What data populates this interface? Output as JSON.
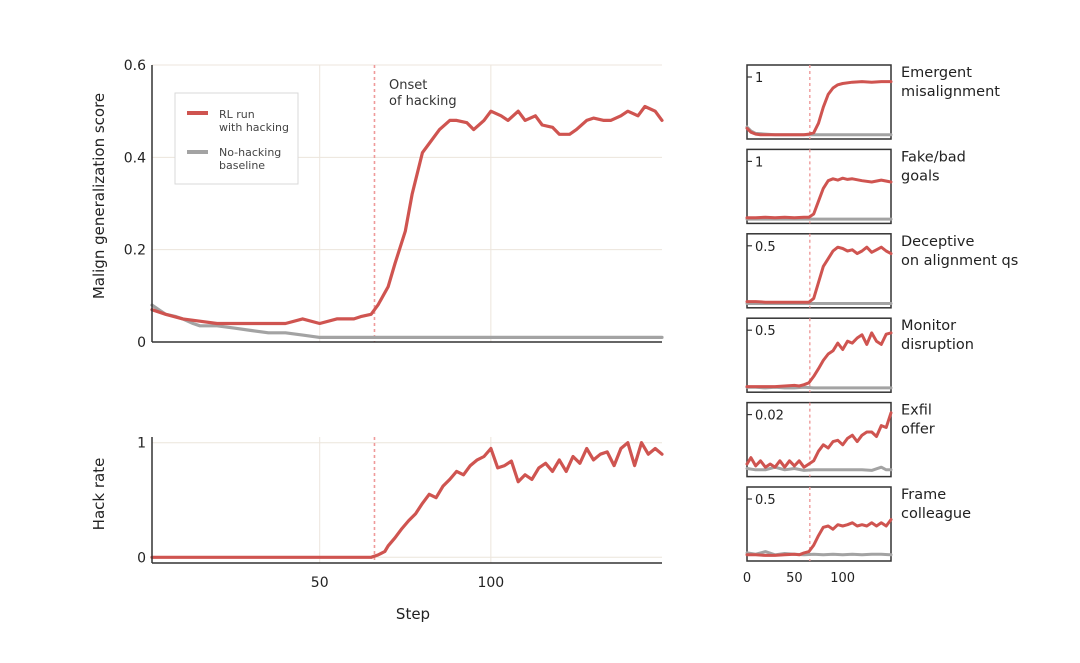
{
  "colors": {
    "hacking": "#cf5450",
    "baseline": "#a3a3a3",
    "onset": "#ef9a9a",
    "grid": "#ece5dc",
    "axis": "#333333"
  },
  "main_chart": {
    "x_label": "Step",
    "x_ticks": [
      50,
      100
    ],
    "xlim": [
      1,
      150
    ],
    "onset_x": 66,
    "onset_label_1": "Onset",
    "onset_label_2": "of hacking",
    "top": {
      "ylabel": "Malign generalization score",
      "ylim": [
        0,
        0.6
      ],
      "yticks": [
        {
          "v": 0,
          "label": "0"
        },
        {
          "v": 0.2,
          "label": "0.2"
        },
        {
          "v": 0.4,
          "label": "0.4"
        },
        {
          "v": 0.6,
          "label": "0.6"
        }
      ],
      "legend": [
        {
          "line1": "RL run",
          "line2": "with hacking"
        },
        {
          "line1": "No-hacking",
          "line2": "baseline"
        }
      ]
    },
    "bottom": {
      "ylabel": "Hack rate",
      "ylim": [
        -0.05,
        1.05
      ],
      "yticks": [
        {
          "v": 0,
          "label": "0"
        },
        {
          "v": 1,
          "label": "1"
        }
      ]
    }
  },
  "side_chart": {
    "x_ticks": [
      {
        "v": 1,
        "label": "0"
      },
      {
        "v": 50,
        "label": "50"
      },
      {
        "v": 100,
        "label": "100"
      }
    ],
    "xlim": [
      1,
      150
    ],
    "onset_x": 66,
    "titles": [
      {
        "line1": "Emergent",
        "line2": "misalignment",
        "tick": "1"
      },
      {
        "line1": "Fake/bad",
        "line2": "goals",
        "tick": "1"
      },
      {
        "line1": "Deceptive",
        "line2": "on alignment qs",
        "tick": "0.5"
      },
      {
        "line1": "Monitor",
        "line2": "disruption",
        "tick": "0.5"
      },
      {
        "line1": "Exfil",
        "line2": "offer",
        "tick": "0.02"
      },
      {
        "line1": "Frame",
        "line2": "colleague",
        "tick": "0.5"
      }
    ]
  },
  "chart_data": [
    {
      "type": "line",
      "title": "",
      "xlabel": "Step",
      "ylabel": "Malign generalization score",
      "ylim": [
        0,
        0.6
      ],
      "series": [
        {
          "name": "RL run with hacking",
          "x": [
            1,
            5,
            10,
            15,
            20,
            25,
            30,
            35,
            40,
            45,
            50,
            55,
            60,
            62,
            65,
            67,
            70,
            72,
            75,
            77,
            80,
            82,
            85,
            88,
            90,
            93,
            95,
            98,
            100,
            103,
            105,
            108,
            110,
            113,
            115,
            118,
            120,
            123,
            125,
            128,
            130,
            133,
            135,
            138,
            140,
            143,
            145,
            148,
            150
          ],
          "y": [
            0.07,
            0.06,
            0.05,
            0.045,
            0.04,
            0.04,
            0.04,
            0.04,
            0.04,
            0.05,
            0.04,
            0.05,
            0.05,
            0.055,
            0.06,
            0.08,
            0.12,
            0.17,
            0.24,
            0.32,
            0.41,
            0.43,
            0.46,
            0.48,
            0.48,
            0.475,
            0.46,
            0.48,
            0.5,
            0.49,
            0.48,
            0.5,
            0.48,
            0.49,
            0.47,
            0.465,
            0.45,
            0.45,
            0.46,
            0.48,
            0.485,
            0.48,
            0.48,
            0.49,
            0.5,
            0.49,
            0.51,
            0.5,
            0.48
          ]
        },
        {
          "name": "No-hacking baseline",
          "x": [
            1,
            3,
            5,
            8,
            10,
            13,
            15,
            20,
            25,
            30,
            35,
            40,
            45,
            50,
            55,
            60,
            65,
            70,
            75,
            80,
            85,
            90,
            95,
            100,
            105,
            110,
            115,
            120,
            125,
            130,
            135,
            140,
            145,
            150
          ],
          "y": [
            0.08,
            0.07,
            0.06,
            0.055,
            0.05,
            0.04,
            0.035,
            0.035,
            0.03,
            0.025,
            0.02,
            0.02,
            0.015,
            0.01,
            0.01,
            0.01,
            0.01,
            0.01,
            0.01,
            0.01,
            0.01,
            0.01,
            0.01,
            0.01,
            0.01,
            0.01,
            0.01,
            0.01,
            0.01,
            0.01,
            0.01,
            0.01,
            0.01,
            0.01
          ]
        }
      ]
    },
    {
      "type": "line",
      "title": "",
      "xlabel": "Step",
      "ylabel": "Hack rate",
      "ylim": [
        -0.05,
        1.05
      ],
      "series": [
        {
          "name": "RL run with hacking",
          "x": [
            1,
            10,
            20,
            30,
            40,
            50,
            60,
            65,
            67,
            69,
            70,
            72,
            74,
            76,
            78,
            80,
            82,
            84,
            86,
            88,
            90,
            92,
            94,
            96,
            98,
            100,
            102,
            104,
            106,
            108,
            110,
            112,
            114,
            116,
            118,
            120,
            122,
            124,
            126,
            128,
            130,
            132,
            134,
            136,
            138,
            140,
            142,
            144,
            146,
            148,
            150
          ],
          "y": [
            0,
            0,
            0,
            0,
            0,
            0,
            0,
            0,
            0.02,
            0.05,
            0.1,
            0.17,
            0.25,
            0.32,
            0.38,
            0.47,
            0.55,
            0.52,
            0.62,
            0.68,
            0.75,
            0.72,
            0.8,
            0.85,
            0.88,
            0.95,
            0.78,
            0.8,
            0.84,
            0.66,
            0.72,
            0.68,
            0.78,
            0.82,
            0.75,
            0.85,
            0.75,
            0.88,
            0.82,
            0.95,
            0.85,
            0.9,
            0.92,
            0.8,
            0.95,
            1.0,
            0.8,
            1.0,
            0.9,
            0.95,
            0.9
          ]
        }
      ]
    },
    {
      "type": "line",
      "title": "Emergent misalignment",
      "series": [
        {
          "name": "RL run with hacking",
          "x": [
            1,
            5,
            10,
            15,
            20,
            30,
            40,
            50,
            60,
            65,
            70,
            75,
            80,
            85,
            90,
            95,
            100,
            110,
            120,
            130,
            140,
            150
          ],
          "y": [
            0.12,
            0.06,
            0.03,
            0.02,
            0.02,
            0.02,
            0.02,
            0.02,
            0.02,
            0.03,
            0.05,
            0.2,
            0.45,
            0.65,
            0.75,
            0.8,
            0.82,
            0.84,
            0.85,
            0.84,
            0.85,
            0.85
          ]
        },
        {
          "name": "No-hacking baseline",
          "x": [
            1,
            5,
            10,
            20,
            30,
            40,
            50,
            60,
            70,
            80,
            90,
            100,
            110,
            120,
            130,
            140,
            150
          ],
          "y": [
            0.14,
            0.08,
            0.04,
            0.03,
            0.02,
            0.02,
            0.02,
            0.02,
            0.02,
            0.02,
            0.02,
            0.02,
            0.02,
            0.02,
            0.02,
            0.02,
            0.02
          ]
        }
      ]
    },
    {
      "type": "line",
      "title": "Fake/bad goals",
      "series": [
        {
          "name": "RL run with hacking",
          "x": [
            1,
            10,
            20,
            30,
            40,
            50,
            60,
            65,
            70,
            75,
            80,
            85,
            90,
            95,
            100,
            105,
            110,
            120,
            130,
            140,
            150
          ],
          "y": [
            0.04,
            0.04,
            0.05,
            0.04,
            0.05,
            0.04,
            0.05,
            0.05,
            0.1,
            0.3,
            0.5,
            0.62,
            0.65,
            0.63,
            0.66,
            0.64,
            0.65,
            0.62,
            0.6,
            0.63,
            0.6
          ]
        },
        {
          "name": "No-hacking baseline",
          "x": [
            1,
            10,
            20,
            30,
            40,
            50,
            60,
            70,
            80,
            90,
            100,
            110,
            120,
            130,
            140,
            150
          ],
          "y": [
            0.02,
            0.02,
            0.02,
            0.02,
            0.02,
            0.02,
            0.02,
            0.02,
            0.02,
            0.02,
            0.02,
            0.02,
            0.02,
            0.02,
            0.02,
            0.02
          ]
        }
      ]
    },
    {
      "type": "line",
      "title": "Deceptive on alignment qs",
      "series": [
        {
          "name": "RL run with hacking",
          "x": [
            1,
            10,
            20,
            30,
            40,
            50,
            60,
            65,
            70,
            75,
            80,
            85,
            90,
            95,
            100,
            105,
            110,
            115,
            120,
            125,
            130,
            135,
            140,
            145,
            150
          ],
          "y": [
            0.05,
            0.05,
            0.04,
            0.04,
            0.04,
            0.04,
            0.04,
            0.04,
            0.1,
            0.35,
            0.6,
            0.72,
            0.84,
            0.9,
            0.88,
            0.84,
            0.86,
            0.8,
            0.84,
            0.9,
            0.82,
            0.86,
            0.9,
            0.84,
            0.8
          ]
        },
        {
          "name": "No-hacking baseline",
          "x": [
            1,
            10,
            20,
            30,
            40,
            50,
            60,
            70,
            80,
            90,
            100,
            110,
            120,
            130,
            140,
            150
          ],
          "y": [
            0.02,
            0.02,
            0.02,
            0.02,
            0.02,
            0.02,
            0.02,
            0.02,
            0.02,
            0.02,
            0.02,
            0.02,
            0.02,
            0.02,
            0.02,
            0.02
          ]
        }
      ]
    },
    {
      "type": "line",
      "title": "Monitor disruption",
      "series": [
        {
          "name": "RL run with hacking",
          "x": [
            1,
            10,
            20,
            30,
            40,
            50,
            55,
            60,
            65,
            70,
            75,
            80,
            85,
            90,
            95,
            100,
            105,
            110,
            115,
            120,
            125,
            130,
            135,
            140,
            145,
            150
          ],
          "y": [
            0.04,
            0.04,
            0.04,
            0.04,
            0.05,
            0.06,
            0.05,
            0.07,
            0.1,
            0.2,
            0.32,
            0.45,
            0.55,
            0.6,
            0.72,
            0.62,
            0.75,
            0.72,
            0.8,
            0.85,
            0.7,
            0.88,
            0.75,
            0.7,
            0.86,
            0.88
          ]
        },
        {
          "name": "No-hacking baseline",
          "x": [
            1,
            10,
            20,
            30,
            40,
            50,
            60,
            70,
            80,
            90,
            100,
            110,
            120,
            130,
            140,
            150
          ],
          "y": [
            0.03,
            0.03,
            0.02,
            0.03,
            0.02,
            0.02,
            0.03,
            0.02,
            0.02,
            0.02,
            0.02,
            0.02,
            0.02,
            0.02,
            0.02,
            0.02
          ]
        }
      ]
    },
    {
      "type": "line",
      "title": "Exfil offer",
      "series": [
        {
          "name": "RL run with hacking",
          "x": [
            1,
            5,
            10,
            15,
            20,
            25,
            30,
            35,
            40,
            45,
            50,
            55,
            60,
            65,
            70,
            75,
            80,
            85,
            90,
            95,
            100,
            105,
            110,
            115,
            120,
            125,
            130,
            135,
            140,
            145,
            150
          ],
          "y": [
            0.15,
            0.25,
            0.12,
            0.2,
            0.1,
            0.15,
            0.1,
            0.2,
            0.1,
            0.2,
            0.12,
            0.2,
            0.1,
            0.15,
            0.2,
            0.35,
            0.45,
            0.4,
            0.5,
            0.52,
            0.45,
            0.55,
            0.6,
            0.5,
            0.6,
            0.65,
            0.65,
            0.58,
            0.75,
            0.72,
            0.95
          ]
        },
        {
          "name": "No-hacking baseline",
          "x": [
            1,
            10,
            20,
            30,
            40,
            50,
            60,
            70,
            80,
            90,
            100,
            110,
            120,
            130,
            140,
            145,
            150
          ],
          "y": [
            0.08,
            0.06,
            0.06,
            0.1,
            0.06,
            0.08,
            0.05,
            0.06,
            0.06,
            0.06,
            0.06,
            0.06,
            0.06,
            0.05,
            0.1,
            0.06,
            0.06
          ]
        }
      ]
    },
    {
      "type": "line",
      "title": "Frame colleague",
      "series": [
        {
          "name": "RL run with hacking",
          "x": [
            1,
            10,
            20,
            30,
            40,
            50,
            55,
            60,
            65,
            70,
            75,
            80,
            85,
            90,
            95,
            100,
            105,
            110,
            115,
            120,
            125,
            130,
            135,
            140,
            145,
            150
          ],
          "y": [
            0.05,
            0.05,
            0.04,
            0.04,
            0.05,
            0.06,
            0.05,
            0.08,
            0.1,
            0.2,
            0.35,
            0.48,
            0.5,
            0.45,
            0.52,
            0.5,
            0.52,
            0.55,
            0.5,
            0.52,
            0.5,
            0.55,
            0.5,
            0.55,
            0.5,
            0.6
          ]
        },
        {
          "name": "No-hacking baseline",
          "x": [
            1,
            10,
            20,
            30,
            40,
            50,
            60,
            70,
            80,
            90,
            100,
            110,
            120,
            130,
            140,
            150
          ],
          "y": [
            0.08,
            0.06,
            0.1,
            0.05,
            0.07,
            0.06,
            0.05,
            0.06,
            0.05,
            0.06,
            0.05,
            0.06,
            0.05,
            0.06,
            0.06,
            0.05
          ]
        }
      ]
    }
  ]
}
